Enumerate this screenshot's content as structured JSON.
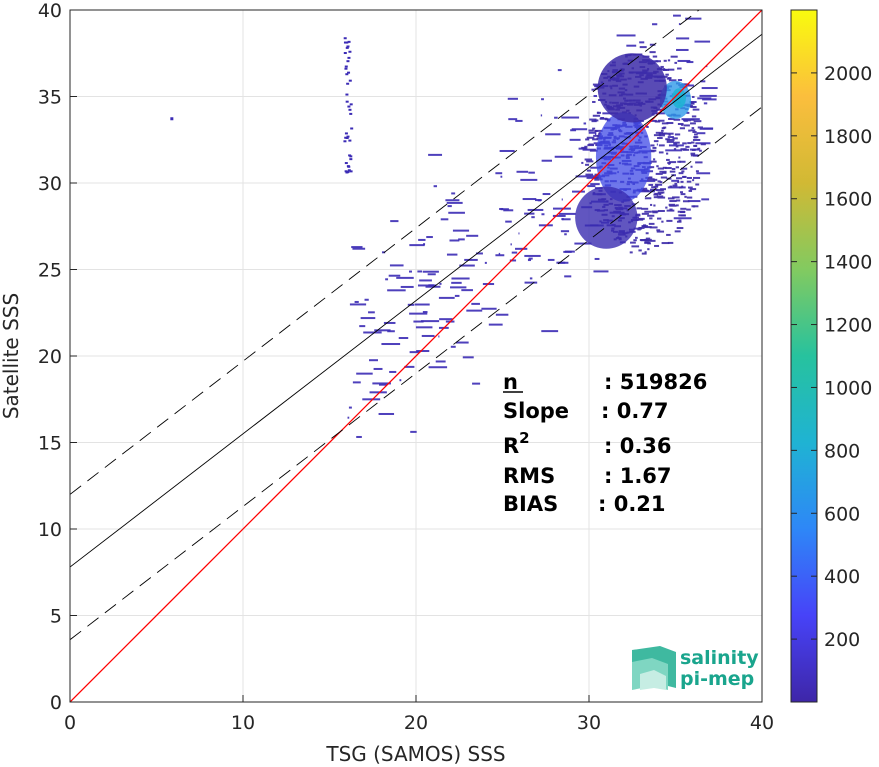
{
  "chart_data": {
    "type": "heatmap",
    "title": "",
    "xlabel": "TSG (SAMOS) SSS",
    "ylabel": "Satellite SSS",
    "xlim": [
      0,
      40
    ],
    "ylim": [
      0,
      40
    ],
    "xticks": [
      0,
      10,
      20,
      30,
      40
    ],
    "yticks": [
      0,
      5,
      10,
      15,
      20,
      25,
      30,
      35,
      40
    ],
    "grid": true,
    "colorbar": {
      "range": [
        0,
        2200
      ],
      "ticks": [
        200,
        400,
        600,
        800,
        1000,
        1200,
        1400,
        1600,
        1800,
        2000
      ],
      "colormap": "parula",
      "colors": [
        "#3e26a8",
        "#4743f8",
        "#2e87f7",
        "#1fb3d3",
        "#27c29e",
        "#82ca60",
        "#d1b934",
        "#fbbe3d",
        "#f9fb0e"
      ]
    },
    "lines": [
      {
        "kind": "one-to-one",
        "color": "#ff0000",
        "points": [
          [
            0,
            0
          ],
          [
            40,
            40
          ]
        ]
      },
      {
        "kind": "regression",
        "color": "#000000",
        "intercept": 7.8,
        "slope": 0.77
      },
      {
        "kind": "upper-bound",
        "color": "#000000",
        "dash": true,
        "intercept": 12.0,
        "slope": 0.77
      },
      {
        "kind": "lower-bound",
        "color": "#000000",
        "dash": true,
        "intercept": 3.6,
        "slope": 0.77
      }
    ],
    "density_blobs": [
      {
        "cx": 32.0,
        "cy": 31.5,
        "sx": 1.6,
        "sy": 2.6,
        "color": "#3f49e6",
        "opacity": 0.75
      },
      {
        "cx": 35.0,
        "cy": 34.8,
        "sx": 0.9,
        "sy": 1.1,
        "color": "#2f9ae8",
        "opacity": 0.8
      },
      {
        "cx": 32.5,
        "cy": 35.5,
        "sx": 2.0,
        "sy": 2.0,
        "color": "#3c2ba8",
        "opacity": 0.85
      },
      {
        "cx": 31.0,
        "cy": 28.0,
        "sx": 1.8,
        "sy": 1.8,
        "color": "#3a2cb0",
        "opacity": 0.8
      }
    ],
    "annotations": {
      "stats": [
        {
          "label": "n",
          "value": ": 519826"
        },
        {
          "label": "Slope",
          "value": ": 0.77"
        },
        {
          "label": "R",
          "superscript": "2",
          "value": ": 0.36"
        },
        {
          "label": "RMS",
          "value": ": 1.67"
        },
        {
          "label": "BIAS",
          "value": ": 0.21"
        }
      ]
    }
  },
  "logo": {
    "line1": "salinity",
    "line2": "pi-mep",
    "color": "#1aa58d"
  }
}
